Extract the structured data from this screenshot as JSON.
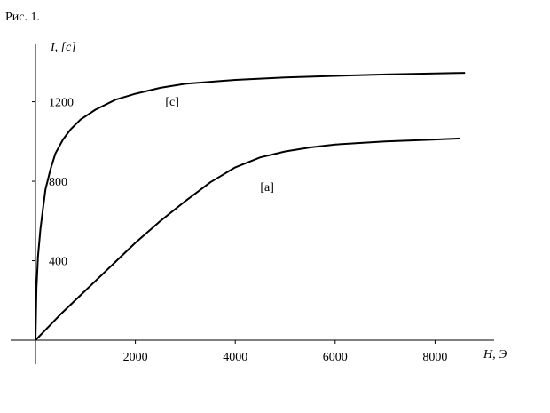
{
  "figure": {
    "caption": "Рис. 1."
  },
  "chart_data": {
    "type": "line",
    "xlabel": "H, Э",
    "ylabel": "I, [c]",
    "xlim": [
      0,
      9200
    ],
    "ylim": [
      0,
      1540
    ],
    "x_ticks": [
      "2000",
      "4000",
      "6000",
      "8000"
    ],
    "y_ticks": [
      "400",
      "800",
      "1200"
    ],
    "grid": false,
    "legend": "none",
    "series": [
      {
        "annotation": "[c]",
        "annotation_at": [
          2600,
          1180
        ],
        "points": [
          [
            0,
            0
          ],
          [
            20,
            260
          ],
          [
            50,
            420
          ],
          [
            100,
            560
          ],
          [
            150,
            660
          ],
          [
            200,
            760
          ],
          [
            300,
            860
          ],
          [
            400,
            940
          ],
          [
            550,
            1010
          ],
          [
            700,
            1060
          ],
          [
            900,
            1110
          ],
          [
            1200,
            1160
          ],
          [
            1600,
            1210
          ],
          [
            2000,
            1240
          ],
          [
            2500,
            1270
          ],
          [
            3000,
            1290
          ],
          [
            4000,
            1310
          ],
          [
            5000,
            1322
          ],
          [
            6000,
            1330
          ],
          [
            7000,
            1337
          ],
          [
            8000,
            1342
          ],
          [
            8600,
            1345
          ]
        ]
      },
      {
        "annotation": "[a]",
        "annotation_at": [
          4500,
          750
        ],
        "points": [
          [
            0,
            0
          ],
          [
            500,
            130
          ],
          [
            1000,
            250
          ],
          [
            1500,
            370
          ],
          [
            2000,
            490
          ],
          [
            2500,
            600
          ],
          [
            3000,
            700
          ],
          [
            3500,
            795
          ],
          [
            4000,
            870
          ],
          [
            4500,
            920
          ],
          [
            5000,
            950
          ],
          [
            5500,
            970
          ],
          [
            6000,
            985
          ],
          [
            7000,
            1000
          ],
          [
            8000,
            1010
          ],
          [
            8500,
            1015
          ]
        ]
      }
    ]
  }
}
